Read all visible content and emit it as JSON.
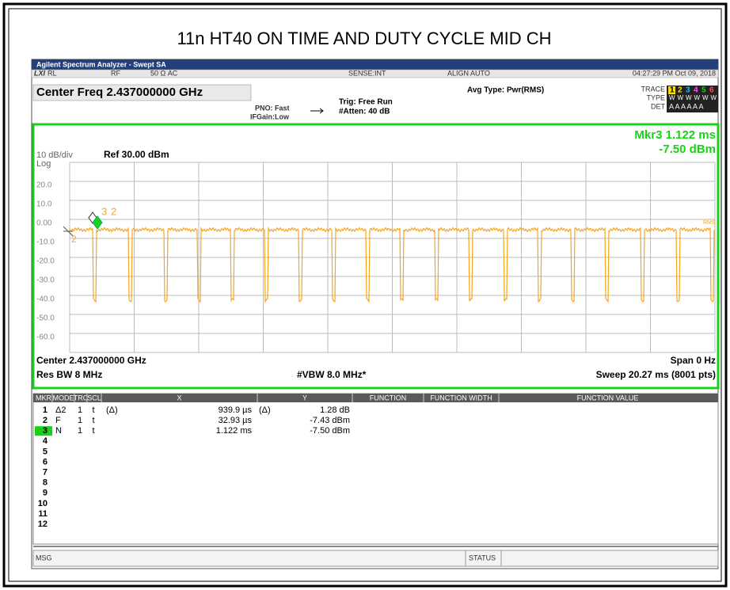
{
  "title": "11n HT40 ON TIME AND DUTY CYCLE MID CH",
  "app_title": "Agilent Spectrum Analyzer - Swept SA",
  "status_bar": {
    "logo": "LXI",
    "rl": "RL",
    "rf": "RF",
    "impedance": "50 Ω  AC",
    "sense": "SENSE:INT",
    "align": "ALIGN AUTO",
    "datetime": "04:27:29 PM Oct 09, 2018"
  },
  "settings": {
    "center_freq": "Center Freq  2.437000000 GHz",
    "pno": "PNO: Fast",
    "ifgain": "IFGain:Low",
    "trig": "Trig: Free Run",
    "atten": "#Atten: 40 dB",
    "avg_type": "Avg Type: Pwr(RMS)",
    "trace_label": "TRACE",
    "trace_nums": [
      "1",
      "2",
      "3",
      "4",
      "5",
      "6"
    ],
    "type_label": "TYPE",
    "type_value": "WWWWWW",
    "det_label": "DET",
    "det_value": "A A A A A A"
  },
  "plot": {
    "scale": "10 dB/div",
    "ref": "Ref 30.00 dBm",
    "log": "Log",
    "marker_readout": "Mkr3 1.122 ms",
    "marker_value": "-7.50 dBm",
    "y_labels": [
      "20.0",
      "10.0",
      "0.00",
      "-10.0",
      "-20.0",
      "-30.0",
      "-40.0",
      "-50.0",
      "-60.0"
    ],
    "marker_tags": [
      "3",
      "2",
      "2"
    ],
    "trace_tag": "RMS"
  },
  "footer": {
    "center": "Center 2.437000000 GHz",
    "span": "Span 0 Hz",
    "res_bw": "Res BW 8 MHz",
    "vbw": "#VBW 8.0 MHz*",
    "sweep": "Sweep  20.27 ms (8001 pts)"
  },
  "marker_table": {
    "columns": [
      "MKR",
      "MODE",
      "TRC",
      "SCL",
      "X",
      "Y",
      "FUNCTION",
      "FUNCTION WIDTH",
      "FUNCTION VALUE"
    ],
    "rows": [
      {
        "mkr": "1",
        "mode": "Δ2",
        "trc": "1",
        "scl": "t",
        "x_ref": "(Δ)",
        "x": "939.9 µs",
        "y_ref": "(Δ)",
        "y": "1.28 dB"
      },
      {
        "mkr": "2",
        "mode": "F",
        "trc": "1",
        "scl": "t",
        "x": "32.93 µs",
        "y": "-7.43 dBm"
      },
      {
        "mkr": "3",
        "mode": "N",
        "trc": "1",
        "scl": "t",
        "x": "1.122 ms",
        "y": "-7.50 dBm"
      },
      {
        "mkr": "4"
      },
      {
        "mkr": "5"
      },
      {
        "mkr": "6"
      },
      {
        "mkr": "7"
      },
      {
        "mkr": "8"
      },
      {
        "mkr": "9"
      },
      {
        "mkr": "10"
      },
      {
        "mkr": "11"
      },
      {
        "mkr": "12"
      }
    ]
  },
  "message_bar": {
    "msg": "MSG",
    "status": "STATUS"
  }
}
